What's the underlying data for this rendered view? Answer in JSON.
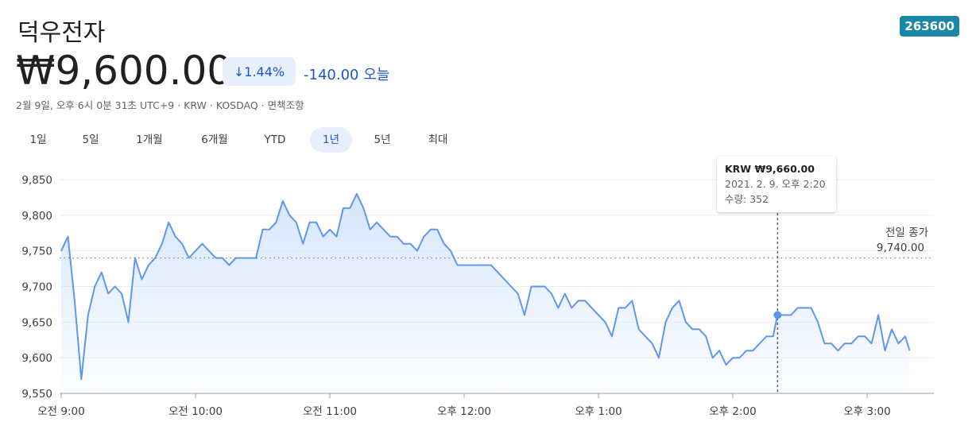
{
  "header": {
    "name": "덕우전자",
    "ticker": "263600",
    "price": "₩9,600.00",
    "change_percent": "1.44%",
    "change": "-140.00",
    "change_period": "오늘",
    "info": "2월 9일, 오후 6시 0분 31초 UTC+9 · KRW · KOSDAQ · 면책조항",
    "tabs": [
      "1일",
      "5일",
      "1개월",
      "6개월",
      "YTD",
      "1년",
      "5년",
      "최대"
    ],
    "selected_tab": 5
  },
  "chart_data": {
    "type": "line",
    "color": "#5e97f0",
    "grid": true,
    "xlim": [
      540,
      930
    ],
    "ylim": [
      9550,
      9850
    ],
    "xticks": [
      {
        "value": 540,
        "label": "오전 9:00"
      },
      {
        "value": 600,
        "label": "오전 10:00"
      },
      {
        "value": 660,
        "label": "오전 11:00"
      },
      {
        "value": 720,
        "label": "오후 12:00"
      },
      {
        "value": 780,
        "label": "오후 1:00"
      },
      {
        "value": 840,
        "label": "오후 2:00"
      },
      {
        "value": 900,
        "label": "오후 3:00"
      }
    ],
    "yticks": [
      {
        "value": 9550,
        "label": "9,550"
      },
      {
        "value": 9600,
        "label": "9,600"
      },
      {
        "value": 9650,
        "label": "9,650"
      },
      {
        "value": 9700,
        "label": "9,700"
      },
      {
        "value": 9750,
        "label": "9,750"
      },
      {
        "value": 9800,
        "label": "9,800"
      },
      {
        "value": 9850,
        "label": "9,850"
      }
    ],
    "x": [
      540,
      543,
      546,
      549,
      552,
      555,
      558,
      561,
      564,
      567,
      570,
      573,
      576,
      579,
      582,
      585,
      588,
      591,
      594,
      597,
      600,
      603,
      606,
      609,
      612,
      615,
      618,
      621,
      624,
      627,
      630,
      633,
      636,
      639,
      642,
      645,
      648,
      651,
      654,
      657,
      660,
      663,
      666,
      669,
      672,
      675,
      678,
      681,
      684,
      687,
      690,
      693,
      696,
      699,
      702,
      705,
      708,
      711,
      714,
      717,
      720,
      723,
      726,
      729,
      732,
      735,
      738,
      741,
      744,
      747,
      750,
      753,
      756,
      759,
      762,
      765,
      768,
      771,
      774,
      777,
      780,
      783,
      786,
      789,
      792,
      795,
      798,
      801,
      804,
      807,
      810,
      813,
      816,
      819,
      822,
      825,
      828,
      831,
      834,
      837,
      840,
      843,
      846,
      849,
      852,
      855,
      858,
      860,
      863,
      866,
      869,
      872,
      875,
      878,
      881,
      884,
      887,
      890,
      893,
      896,
      899,
      902,
      905,
      908,
      911,
      914,
      917,
      919
    ],
    "values": [
      9750,
      9770,
      9680,
      9570,
      9660,
      9700,
      9720,
      9690,
      9700,
      9690,
      9650,
      9740,
      9710,
      9730,
      9740,
      9760,
      9790,
      9770,
      9760,
      9740,
      9750,
      9760,
      9750,
      9740,
      9740,
      9730,
      9740,
      9740,
      9740,
      9740,
      9780,
      9780,
      9790,
      9820,
      9800,
      9790,
      9760,
      9790,
      9790,
      9770,
      9780,
      9770,
      9810,
      9810,
      9830,
      9810,
      9780,
      9790,
      9780,
      9770,
      9770,
      9760,
      9760,
      9750,
      9770,
      9780,
      9780,
      9760,
      9750,
      9730,
      9730,
      9730,
      9730,
      9730,
      9730,
      9720,
      9710,
      9700,
      9690,
      9660,
      9700,
      9700,
      9700,
      9690,
      9670,
      9690,
      9670,
      9680,
      9680,
      9670,
      9660,
      9650,
      9630,
      9670,
      9670,
      9680,
      9640,
      9630,
      9620,
      9600,
      9650,
      9670,
      9680,
      9650,
      9640,
      9640,
      9630,
      9600,
      9610,
      9590,
      9600,
      9600,
      9610,
      9610,
      9620,
      9630,
      9630,
      9660,
      9660,
      9660,
      9670,
      9670,
      9670,
      9650,
      9620,
      9620,
      9610,
      9620,
      9620,
      9630,
      9630,
      9620,
      9660,
      9610,
      9640,
      9620,
      9630,
      9610
    ],
    "previous_close": {
      "label": "전일 종가",
      "value": 9740,
      "value_label": "9,740.00"
    },
    "tooltip": {
      "x": 860,
      "value": 9660,
      "value_label": "KRW ₩9,660.00",
      "time": "2021. 2. 9. 오후 2:20",
      "volume": "수량: 352"
    }
  }
}
